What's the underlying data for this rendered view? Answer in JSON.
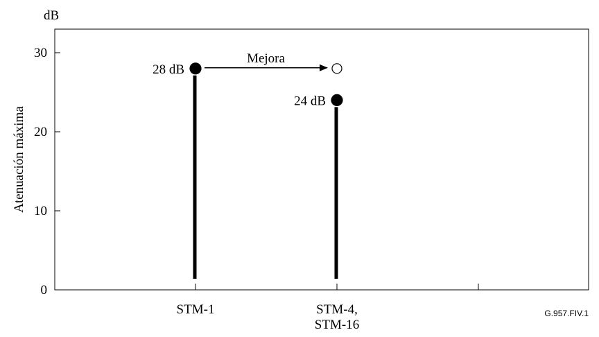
{
  "chart_data": {
    "type": "scatter",
    "ylabel": "Atenuación máxima",
    "y_unit": "dB",
    "ylim": [
      0,
      30
    ],
    "yticks": [
      0,
      10,
      20,
      30
    ],
    "categories": [
      "STM-1",
      "STM-4,\nSTM-16"
    ],
    "points": [
      {
        "category": "STM-1",
        "value": 28,
        "label": "28 dB",
        "filled": true
      },
      {
        "category": "STM-4,\nSTM-16",
        "value": 28,
        "label": "",
        "filled": false
      },
      {
        "category": "STM-4,\nSTM-16",
        "value": 24,
        "label": "24 dB",
        "filled": true
      }
    ],
    "annotation": {
      "text": "Mejora",
      "from_category": "STM-1",
      "to_category": "STM-4,\nSTM-16",
      "value": 28
    },
    "figure_id": "G.957.FIV.1",
    "grid": false
  }
}
